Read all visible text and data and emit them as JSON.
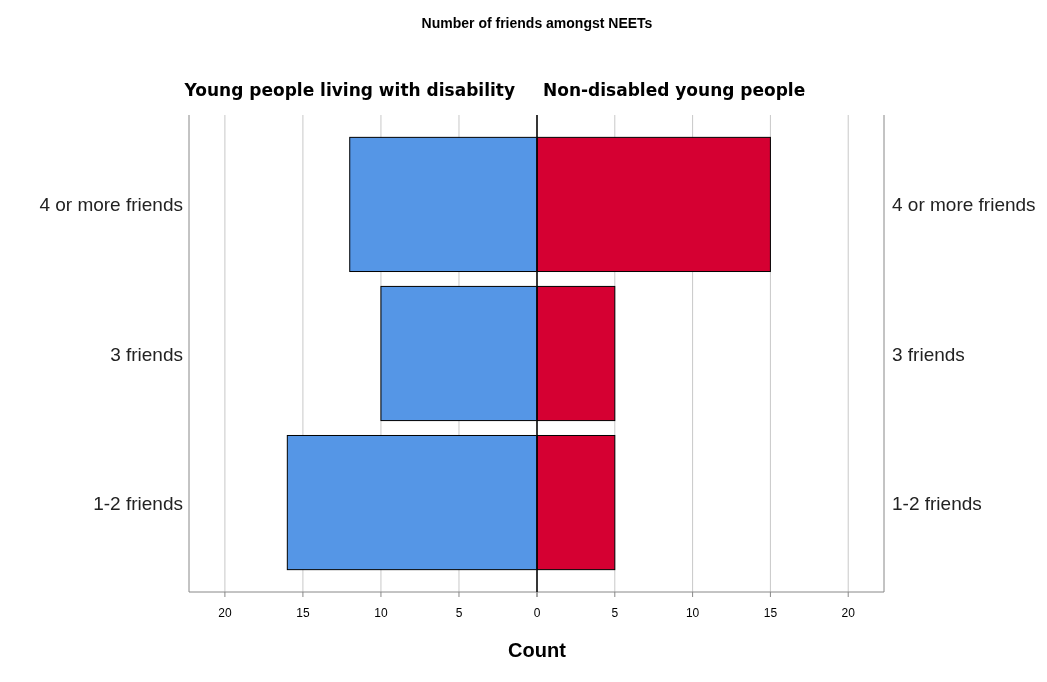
{
  "chart_data": [
    {
      "type": "bar",
      "orientation": "horizontal",
      "title": "Number of friends amongst NEETs",
      "xlabel": "Count",
      "categories": [
        "4 or more friends",
        "3 friends",
        "1-2 friends"
      ],
      "series": [
        {
          "name": "Young people living with disability",
          "color": "#5596e6",
          "values": [
            12,
            10,
            16
          ]
        }
      ],
      "xlim": [
        22.3,
        0
      ],
      "xticks": [
        20,
        15,
        10,
        5,
        {
          "value": 0,
          "label": null
        }
      ],
      "grid": "x"
    },
    {
      "type": "bar",
      "orientation": "horizontal",
      "categories": [
        "4 or more friends",
        "3 friends",
        "1-2 friends"
      ],
      "series": [
        {
          "name": "Non-disabled young people",
          "color": "#d50032",
          "values": [
            15,
            5,
            5
          ]
        }
      ],
      "xlim": [
        0,
        22.3
      ],
      "xticks": [
        0,
        5,
        10,
        15,
        20
      ],
      "grid": "x"
    }
  ]
}
